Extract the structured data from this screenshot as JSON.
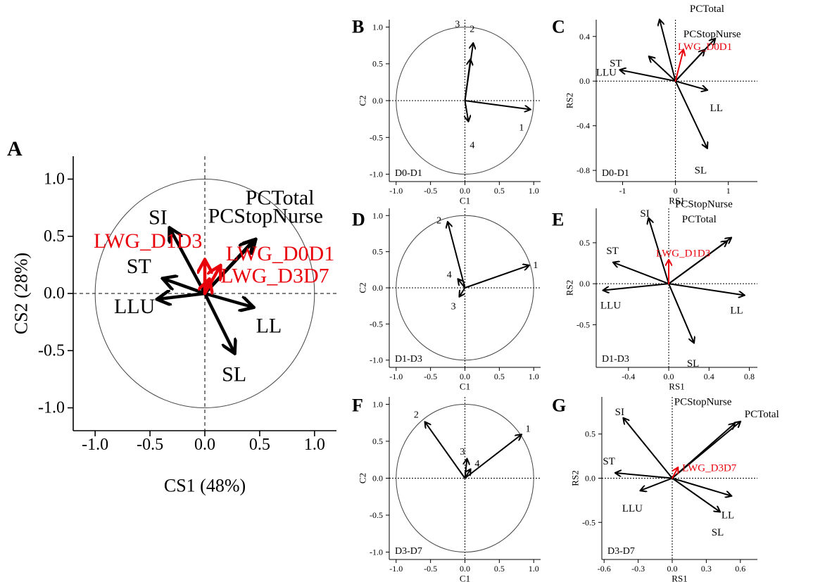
{
  "figure": {
    "colors": {
      "ink": "#000000",
      "red": "#e8000b"
    }
  },
  "chart_data": [
    {
      "panel": "A",
      "type": "biplot",
      "label": "A",
      "xlabel": "CS1 (48%)",
      "ylabel": "CS2 (28%)",
      "xlim": [
        -1.2,
        1.2
      ],
      "ylim": [
        -1.2,
        1.2
      ],
      "xticks": [
        -1.0,
        -0.5,
        0.0,
        0.5,
        1.0
      ],
      "yticks": [
        -1.0,
        -0.5,
        0.0,
        0.5,
        1.0
      ],
      "tick_labels_x": [
        "-1.0",
        "-0.5",
        "0.0",
        "0.5",
        "1.0"
      ],
      "tick_labels_y": [
        "-1.0",
        "-0.5",
        "0.0",
        "0.5",
        "1.0"
      ],
      "circle_radius": 1.0,
      "period": "",
      "vectors": [
        {
          "name": "SI",
          "x": -0.32,
          "y": 0.57,
          "color": "black"
        },
        {
          "name": "ST",
          "x": -0.38,
          "y": 0.13,
          "color": "black"
        },
        {
          "name": "LLU",
          "x": -0.43,
          "y": -0.05,
          "color": "black"
        },
        {
          "name": "PCTotal",
          "x": 0.46,
          "y": 0.47,
          "color": "black"
        },
        {
          "name": "PCStopNurse",
          "x": 0.44,
          "y": 0.46,
          "color": "black"
        },
        {
          "name": "LL",
          "x": 0.44,
          "y": -0.12,
          "color": "black"
        },
        {
          "name": "SL",
          "x": 0.27,
          "y": -0.52,
          "color": "black"
        },
        {
          "name": "LWG_D1D3",
          "x": 0.0,
          "y": 0.29,
          "color": "red"
        },
        {
          "name": "LWG_D0D1",
          "x": 0.14,
          "y": 0.24,
          "color": "red"
        },
        {
          "name": "LWG_D3D7",
          "x": 0.04,
          "y": 0.12,
          "color": "red"
        }
      ]
    },
    {
      "panel": "B",
      "type": "correlation-circle",
      "label": "B",
      "xlabel": "C1",
      "ylabel": "C2",
      "xlim": [
        -1.1,
        1.1
      ],
      "ylim": [
        -1.1,
        1.1
      ],
      "xticks": [
        -1.0,
        -0.5,
        0.0,
        0.5,
        1.0
      ],
      "yticks": [
        -1.0,
        -0.5,
        0.0,
        0.5,
        1.0
      ],
      "tick_labels_x": [
        "-1.0",
        "-0.5",
        "0.0",
        "0.5",
        "1.0"
      ],
      "tick_labels_y": [
        "-1.0",
        "-0.5",
        "0.0",
        "0.5",
        "1.0"
      ],
      "circle_radius": 1.0,
      "period": "D0-D1",
      "vectors": [
        {
          "name": "1",
          "x": 0.95,
          "y": -0.12
        },
        {
          "name": "2",
          "x": 0.12,
          "y": 0.78
        },
        {
          "name": "3",
          "x": 0.08,
          "y": 0.56
        },
        {
          "name": "4",
          "x": 0.05,
          "y": -0.28
        }
      ]
    },
    {
      "panel": "C",
      "type": "biplot",
      "label": "C",
      "xlabel": "RS1",
      "ylabel": "RS2",
      "xlim": [
        -1.5,
        1.55
      ],
      "ylim": [
        -0.9,
        0.55
      ],
      "xticks": [
        -1,
        0,
        1
      ],
      "yticks": [
        -0.8,
        -0.4,
        0.0,
        0.4
      ],
      "tick_labels_x": [
        "-1",
        "0",
        "1"
      ],
      "tick_labels_y": [
        "-0.8",
        "-0.4",
        "0.0",
        "0.4"
      ],
      "period": "D0-D1",
      "vectors": [
        {
          "name": "SI",
          "x": -0.3,
          "y": 0.55,
          "color": "black"
        },
        {
          "name": "ST",
          "x": -0.5,
          "y": 0.22,
          "color": "black"
        },
        {
          "name": "LLU",
          "x": -1.05,
          "y": 0.1,
          "color": "black"
        },
        {
          "name": "PCTotal",
          "x": 0.75,
          "y": 0.38,
          "color": "black"
        },
        {
          "name": "PCStopNurse",
          "x": 0.55,
          "y": 0.28,
          "color": "black"
        },
        {
          "name": "LL",
          "x": 0.6,
          "y": -0.08,
          "color": "black"
        },
        {
          "name": "SL",
          "x": 0.6,
          "y": -0.6,
          "color": "black"
        },
        {
          "name": "LWG_D0D1",
          "x": 0.15,
          "y": 0.28,
          "color": "red"
        }
      ]
    },
    {
      "panel": "D",
      "type": "correlation-circle",
      "label": "D",
      "xlabel": "C1",
      "ylabel": "C2",
      "xlim": [
        -1.1,
        1.1
      ],
      "ylim": [
        -1.1,
        1.1
      ],
      "xticks": [
        -1.0,
        -0.5,
        0.0,
        0.5,
        1.0
      ],
      "yticks": [
        -1.0,
        -0.5,
        0.0,
        0.5,
        1.0
      ],
      "tick_labels_x": [
        "-1.0",
        "-0.5",
        "0.0",
        "0.5",
        "1.0"
      ],
      "tick_labels_y": [
        "-1.0",
        "-0.5",
        "0.0",
        "0.5",
        "1.0"
      ],
      "circle_radius": 1.0,
      "period": "D1-D3",
      "vectors": [
        {
          "name": "1",
          "x": 0.93,
          "y": 0.31
        },
        {
          "name": "2",
          "x": -0.25,
          "y": 0.91
        },
        {
          "name": "3",
          "x": -0.08,
          "y": -0.12
        },
        {
          "name": "4",
          "x": -0.1,
          "y": 0.12
        }
      ]
    },
    {
      "panel": "E",
      "type": "biplot",
      "label": "E",
      "xlabel": "RS1",
      "ylabel": "RS2",
      "xlim": [
        -0.72,
        0.88
      ],
      "ylim": [
        -1.02,
        0.92
      ],
      "xticks": [
        -0.4,
        0.0,
        0.4,
        0.8
      ],
      "yticks": [
        -0.5,
        0.0,
        0.5
      ],
      "tick_labels_x": [
        "-0.4",
        "0.0",
        "0.4",
        "0.8"
      ],
      "tick_labels_y": [
        "-0.5",
        "0.0",
        "0.5"
      ],
      "period": "D1-D3",
      "vectors": [
        {
          "name": "SI",
          "x": -0.2,
          "y": 0.8,
          "color": "black"
        },
        {
          "name": "ST",
          "x": -0.55,
          "y": 0.26,
          "color": "black"
        },
        {
          "name": "LLU",
          "x": -0.65,
          "y": -0.08,
          "color": "black"
        },
        {
          "name": "PCStopNurse",
          "x": 0.58,
          "y": 0.52,
          "color": "black"
        },
        {
          "name": "PCTotal",
          "x": 0.62,
          "y": 0.56,
          "color": "black"
        },
        {
          "name": "LL",
          "x": 0.75,
          "y": -0.14,
          "color": "black"
        },
        {
          "name": "SL",
          "x": 0.25,
          "y": -0.72,
          "color": "black"
        },
        {
          "name": "LWG_D1D3",
          "x": 0.0,
          "y": 0.29,
          "color": "red"
        }
      ]
    },
    {
      "panel": "F",
      "type": "correlation-circle",
      "label": "F",
      "xlabel": "C1",
      "ylabel": "C2",
      "xlim": [
        -1.1,
        1.1
      ],
      "ylim": [
        -1.1,
        1.1
      ],
      "xticks": [
        -1.0,
        -0.5,
        0.0,
        0.5,
        1.0
      ],
      "yticks": [
        -1.0,
        -0.5,
        0.0,
        0.5,
        1.0
      ],
      "tick_labels_x": [
        "-1.0",
        "-0.5",
        "0.0",
        "0.5",
        "1.0"
      ],
      "tick_labels_y": [
        "-1.0",
        "-0.5",
        "0.0",
        "0.5",
        "1.0"
      ],
      "circle_radius": 1.0,
      "period": "D3-D7",
      "vectors": [
        {
          "name": "1",
          "x": 0.82,
          "y": 0.59
        },
        {
          "name": "2",
          "x": -0.58,
          "y": 0.76
        },
        {
          "name": "3",
          "x": 0.03,
          "y": 0.26
        },
        {
          "name": "4",
          "x": 0.08,
          "y": 0.12
        }
      ]
    },
    {
      "panel": "G",
      "type": "biplot",
      "label": "G",
      "xlabel": "RS1",
      "ylabel": "RS2",
      "xlim": [
        -0.62,
        0.75
      ],
      "ylim": [
        -0.92,
        0.92
      ],
      "xticks": [
        -0.6,
        -0.3,
        0.0,
        0.3,
        0.6
      ],
      "yticks": [
        -0.5,
        0.0,
        0.5
      ],
      "tick_labels_x": [
        "-0.6",
        "-0.3",
        "0.0",
        "0.3",
        "0.6"
      ],
      "tick_labels_y": [
        "-0.5",
        "0.0",
        "0.5"
      ],
      "period": "D3-D7",
      "vectors": [
        {
          "name": "SI",
          "x": -0.43,
          "y": 0.68,
          "color": "black"
        },
        {
          "name": "ST",
          "x": -0.5,
          "y": 0.06,
          "color": "black"
        },
        {
          "name": "LLU",
          "x": -0.28,
          "y": -0.14,
          "color": "black"
        },
        {
          "name": "PCStopNurse",
          "x": 0.55,
          "y": 0.62,
          "color": "black"
        },
        {
          "name": "PCTotal",
          "x": 0.6,
          "y": 0.64,
          "color": "black"
        },
        {
          "name": "LL",
          "x": 0.52,
          "y": -0.2,
          "color": "black"
        },
        {
          "name": "SL",
          "x": 0.42,
          "y": -0.38,
          "color": "black"
        },
        {
          "name": "LWG_D3D7",
          "x": 0.05,
          "y": 0.12,
          "color": "red"
        }
      ]
    }
  ]
}
